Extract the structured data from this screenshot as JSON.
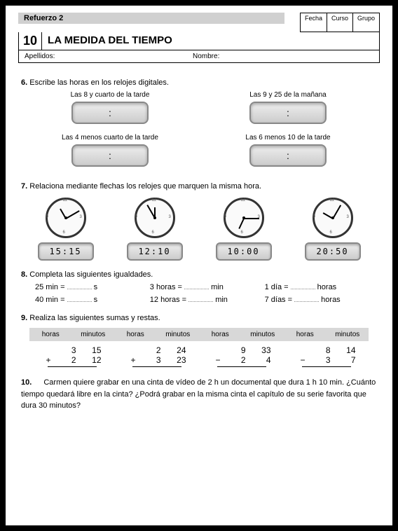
{
  "header": {
    "refuerzo": "Refuerzo 2",
    "fecha": "Fecha",
    "curso": "Curso",
    "grupo": "Grupo",
    "num": "10",
    "title": "LA MEDIDA DEL TIEMPO",
    "apellidos": "Apellidos:",
    "nombre": "Nombre:"
  },
  "q6": {
    "num": "6.",
    "text": "Escribe las horas en los relojes digitales.",
    "labels": {
      "a": "Las 8 y cuarto de la tarde",
      "b": "Las 9 y 25 de la mañana",
      "c": "Las 4 menos cuarto de la tarde",
      "d": "Las 6 menos 10 de la tarde"
    }
  },
  "q7": {
    "num": "7.",
    "text": "Relaciona mediante flechas los relojes que marquen la misma hora.",
    "clocks": [
      {
        "hour_angle": -30,
        "min_angle": 60,
        "digital": "15:15"
      },
      {
        "hour_angle": 0,
        "min_angle": -30,
        "digital": "12:10"
      },
      {
        "hour_angle": -155,
        "min_angle": 90,
        "digital": "10:00"
      },
      {
        "hour_angle": -60,
        "min_angle": 30,
        "digital": "20:50"
      }
    ]
  },
  "q8": {
    "num": "8.",
    "text": "Completa las siguientes igualdades.",
    "rows": [
      [
        "25 min =",
        "s",
        "3 horas =",
        "min",
        "1 día =",
        "horas"
      ],
      [
        "40 min =",
        "s",
        "12 horas =",
        "min",
        "7 días =",
        "horas"
      ]
    ]
  },
  "q9": {
    "num": "9.",
    "text": "Realiza las siguientes sumas y restas.",
    "header": {
      "h": "horas",
      "m": "minutos"
    },
    "problems": [
      {
        "a_h": "3",
        "a_m": "15",
        "op": "+",
        "b_h": "2",
        "b_m": "12"
      },
      {
        "a_h": "2",
        "a_m": "24",
        "op": "+",
        "b_h": "3",
        "b_m": "23"
      },
      {
        "a_h": "9",
        "a_m": "33",
        "op": "−",
        "b_h": "2",
        "b_m": "4"
      },
      {
        "a_h": "8",
        "a_m": "14",
        "op": "−",
        "b_h": "3",
        "b_m": "7"
      }
    ]
  },
  "q10": {
    "num": "10.",
    "text": "Carmen quiere grabar en una cinta de vídeo de 2 h un documental que dura 1 h 10 min. ¿Cuánto tiempo quedará libre en la cinta? ¿Podrá grabar en la misma cinta el capítulo de su serie favorita que dura 30 minutos?"
  }
}
